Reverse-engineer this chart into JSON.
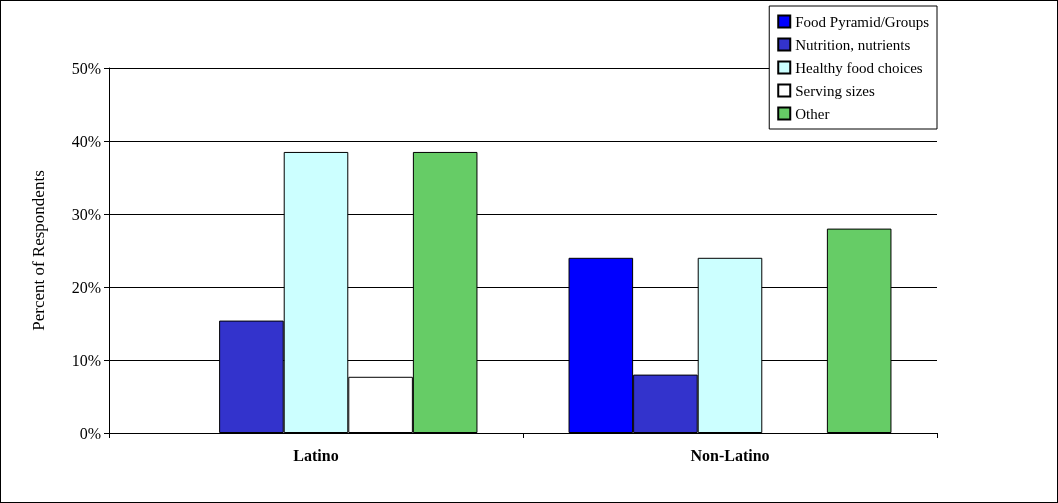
{
  "chart_data": {
    "type": "bar",
    "ylabel": "Percent of Respondents",
    "categories": [
      "Latino",
      "Non-Latino"
    ],
    "series": [
      {
        "name": "Food Pyramid/Groups",
        "color": "#0000ff",
        "values": [
          0,
          24
        ]
      },
      {
        "name": "Nutrition, nutrients",
        "color": "#3333cc",
        "values": [
          15.4,
          8
        ]
      },
      {
        "name": "Healthy food choices",
        "color": "#ccffff",
        "values": [
          38.5,
          24
        ]
      },
      {
        "name": "Serving sizes",
        "color": "#ffffff",
        "values": [
          7.7,
          0
        ]
      },
      {
        "name": "Other",
        "color": "#66cc66",
        "values": [
          38.5,
          28
        ]
      }
    ],
    "ylim": [
      0,
      50
    ],
    "yticks": [
      {
        "value": 0,
        "label": "0%"
      },
      {
        "value": 10,
        "label": "10%"
      },
      {
        "value": 20,
        "label": "20%"
      },
      {
        "value": 30,
        "label": "30%"
      },
      {
        "value": 40,
        "label": "40%"
      },
      {
        "value": 50,
        "label": "50%"
      }
    ],
    "grid": "y",
    "legend": "top right"
  }
}
